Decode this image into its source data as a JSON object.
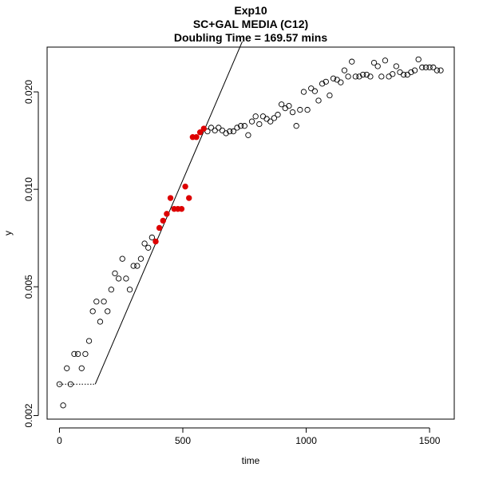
{
  "chart_data": {
    "type": "scatter",
    "title": "Exp10",
    "subtitle": "SC+GAL MEDIA (C12)",
    "doubling_time_text": "Doubling Time = 169.57 mins",
    "xlabel": "time",
    "ylabel": "y",
    "xlim": [
      -50,
      1600
    ],
    "ylim": [
      0.00195,
      0.0275
    ],
    "y_scale": "log",
    "x_ticks": [
      0,
      500,
      1000,
      1500
    ],
    "x_tick_labels": [
      "0",
      "500",
      "1000",
      "1500"
    ],
    "y_ticks": [
      0.002,
      0.005,
      0.01,
      0.02
    ],
    "y_tick_labels": [
      "0.002",
      "0.005",
      "0.010",
      "0.020"
    ],
    "grid": false,
    "colors": {
      "highlight": "#dd0000",
      "open_point": "#000000",
      "line": "#000000"
    },
    "series": [
      {
        "style": "open",
        "x": [
          0,
          15,
          30,
          45,
          60,
          75,
          90,
          105,
          120,
          135,
          150,
          165,
          180,
          195,
          210,
          225,
          240,
          255,
          270,
          285,
          300,
          315,
          330,
          345,
          360,
          375,
          600,
          615,
          630,
          645,
          660,
          675,
          690,
          705,
          720,
          735,
          750,
          765,
          780,
          795,
          810,
          825,
          840,
          855,
          870,
          885,
          900,
          915,
          930,
          945,
          960,
          975,
          990,
          1005,
          1020,
          1035,
          1050,
          1065,
          1080,
          1095,
          1110,
          1125,
          1140,
          1155,
          1170,
          1185,
          1200,
          1215,
          1230,
          1245,
          1260,
          1275,
          1290,
          1305,
          1320,
          1335,
          1350,
          1365,
          1380,
          1395,
          1410,
          1425,
          1440,
          1455,
          1470,
          1485,
          1500,
          1515,
          1530,
          1545
        ],
        "y": [
          0.0025,
          0.00215,
          0.0028,
          0.0025,
          0.0031,
          0.0031,
          0.0028,
          0.0031,
          0.0034,
          0.0042,
          0.0045,
          0.0039,
          0.0045,
          0.0042,
          0.0049,
          0.0055,
          0.0053,
          0.0061,
          0.0053,
          0.0049,
          0.0058,
          0.0058,
          0.0061,
          0.0068,
          0.0066,
          0.0071,
          0.0151,
          0.0155,
          0.0152,
          0.0155,
          0.0152,
          0.0149,
          0.0151,
          0.0151,
          0.0155,
          0.0157,
          0.0157,
          0.0147,
          0.0162,
          0.0168,
          0.0159,
          0.0168,
          0.0165,
          0.0162,
          0.0166,
          0.017,
          0.0183,
          0.0178,
          0.0181,
          0.0173,
          0.0157,
          0.0176,
          0.02,
          0.0176,
          0.0205,
          0.0201,
          0.0188,
          0.0212,
          0.0215,
          0.0195,
          0.022,
          0.0218,
          0.0214,
          0.0233,
          0.0223,
          0.0248,
          0.0223,
          0.0223,
          0.0226,
          0.0226,
          0.0223,
          0.0246,
          0.024,
          0.0223,
          0.025,
          0.0223,
          0.0227,
          0.024,
          0.023,
          0.0226,
          0.0226,
          0.023,
          0.0233,
          0.0252,
          0.0238,
          0.0238,
          0.0238,
          0.0238,
          0.0233,
          0.0233
        ]
      },
      {
        "style": "filled",
        "x": [
          390,
          405,
          420,
          435,
          450,
          465,
          480,
          495,
          510,
          525,
          540,
          555,
          570,
          585
        ],
        "y": [
          0.0069,
          0.0076,
          0.008,
          0.0084,
          0.0094,
          0.0087,
          0.0087,
          0.0087,
          0.0102,
          0.0094,
          0.0145,
          0.0145,
          0.015,
          0.0154
        ]
      }
    ],
    "fit_line": {
      "x": [
        145,
        741
      ],
      "y": [
        0.0025,
        0.0286
      ]
    },
    "baseline_line": {
      "x": [
        0,
        145
      ],
      "y": [
        0.0025,
        0.0025
      ]
    }
  }
}
